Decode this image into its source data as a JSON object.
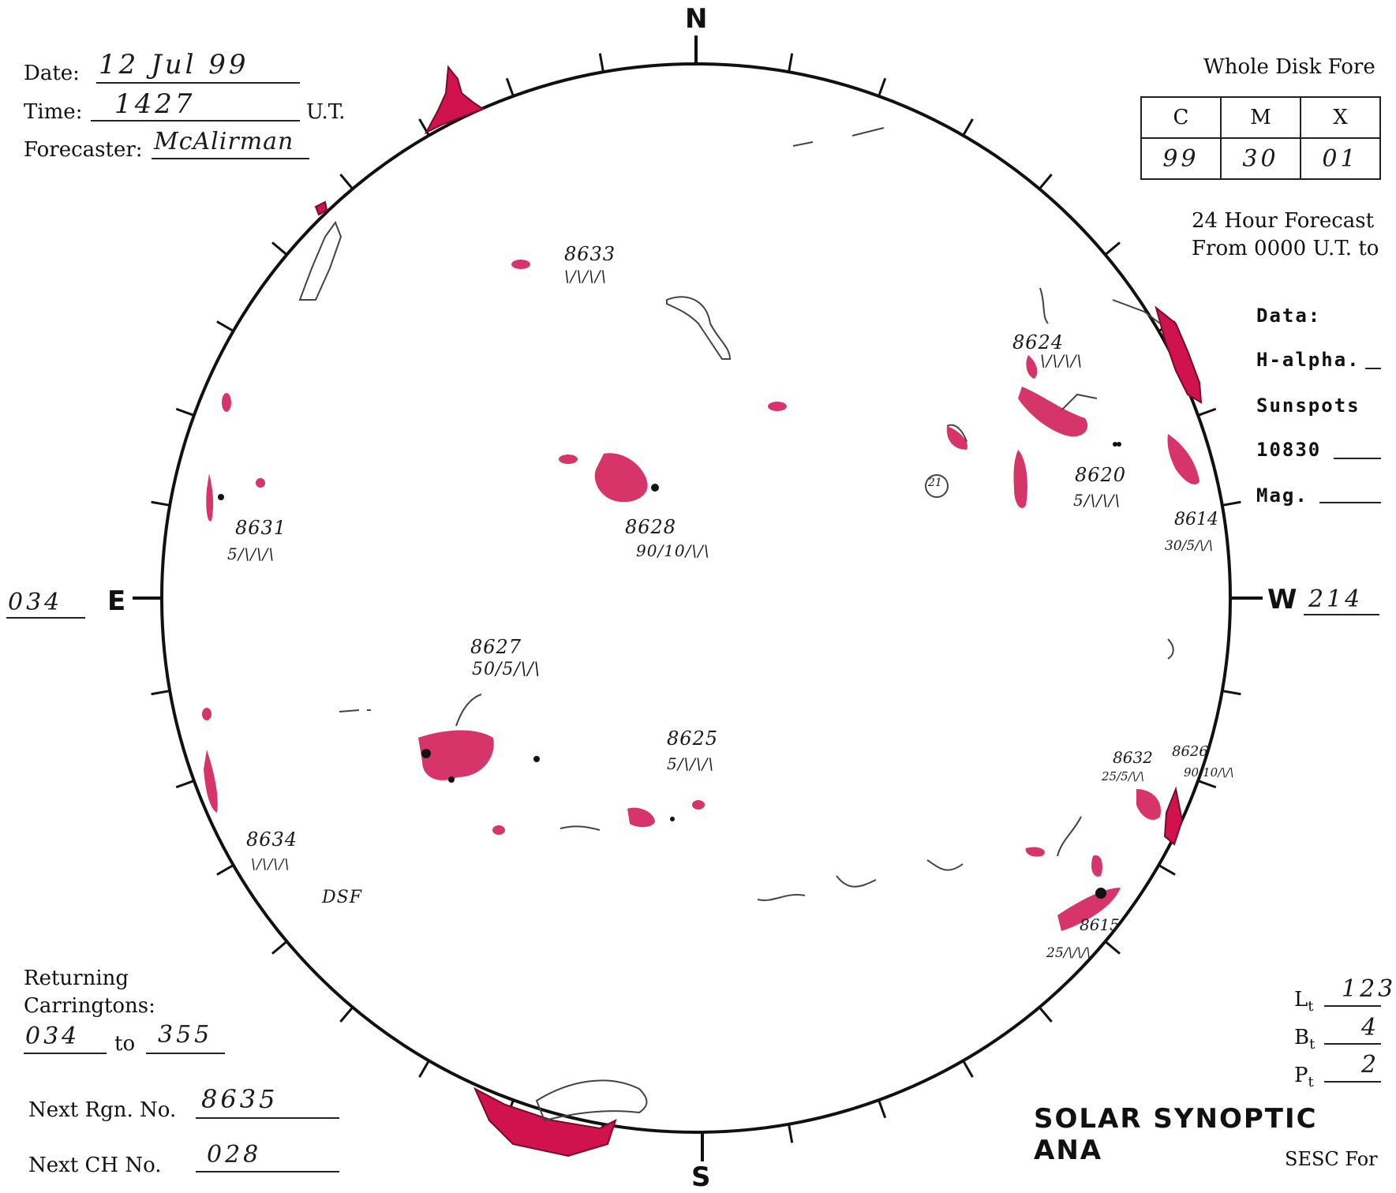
{
  "header": {
    "date_label": "Date:",
    "date_value": "12 Jul 99",
    "time_label": "Time:",
    "time_value": "1427",
    "time_unit": "U.T.",
    "forecaster_label": "Forecaster:",
    "forecaster_value": "McAlirman"
  },
  "forecast": {
    "title": "Whole Disk Fore",
    "columns": [
      "C",
      "M",
      "X"
    ],
    "values": [
      "99",
      "30",
      "01"
    ],
    "note_line1": "24 Hour Forecast",
    "note_line2": "From 0000 U.T. to"
  },
  "data_panel": {
    "heading": "Data:",
    "rows": [
      "H-alpha.",
      "Sunspots",
      "10830",
      "Mag."
    ]
  },
  "compass": {
    "north": "N",
    "south": "S",
    "east": "E",
    "west": "W"
  },
  "longitudes": {
    "east": "034",
    "west": "214"
  },
  "regions": [
    {
      "number": "8633",
      "class": "\\/\\/\\/\\"
    },
    {
      "number": "8624",
      "class": "\\/\\/\\/\\"
    },
    {
      "number": "8631",
      "class": "5/\\/\\/\\"
    },
    {
      "number": "8628",
      "class": "90/10/\\/\\"
    },
    {
      "number": "8620",
      "class": "5/\\/\\/\\"
    },
    {
      "number": "8614",
      "class": "30/5/\\/\\"
    },
    {
      "number": "8627",
      "class": "50/5/\\/\\"
    },
    {
      "number": "8625",
      "class": "5/\\/\\/\\"
    },
    {
      "number": "8632",
      "class": "25/5/\\/\\"
    },
    {
      "number": "8626",
      "class": "90/10/\\/\\"
    },
    {
      "number": "8634",
      "class": "\\/\\/\\/\\"
    },
    {
      "number": "8615",
      "class": "25/\\/\\/\\"
    }
  ],
  "annotations": {
    "dsf": "DSF",
    "ch_id": "21"
  },
  "returning": {
    "label_line1": "Returning",
    "label_line2": "Carringtons:",
    "from": "034",
    "to_label": "to",
    "to": "355"
  },
  "next_region": {
    "label": "Next Rgn. No.",
    "value": "8635"
  },
  "next_ch": {
    "label": "Next CH No.",
    "value": "028"
  },
  "params": [
    {
      "symbol": "L",
      "sub": "t",
      "value": "123"
    },
    {
      "symbol": "B",
      "sub": "t",
      "value": "4"
    },
    {
      "symbol": "P",
      "sub": "t",
      "value": "2"
    }
  ],
  "footer": {
    "title": "SOLAR SYNOPTIC ANA",
    "form": "SESC For"
  }
}
